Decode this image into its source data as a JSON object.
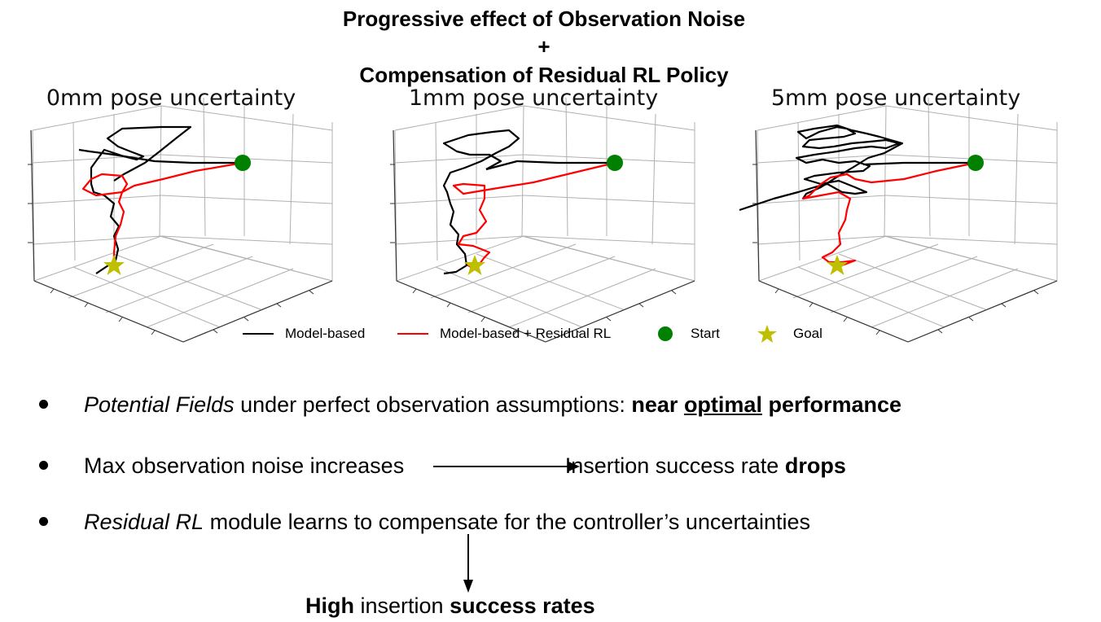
{
  "header": {
    "line1": "Progressive effect of Observation Noise",
    "line2": "+",
    "line3": "Compensation of Residual RL Policy"
  },
  "plots": [
    {
      "title": "0mm pose uncertainty",
      "noise_mm": 0
    },
    {
      "title": "1mm pose uncertainty",
      "noise_mm": 1
    },
    {
      "title": "5mm pose uncertainty",
      "noise_mm": 5
    }
  ],
  "legend": {
    "model_based": "Model-based",
    "residual": "Model-based + Residual RL",
    "start": "Start",
    "goal": "Goal"
  },
  "colors": {
    "model_based": "#000000",
    "residual": "#ff0000",
    "start": "#008000",
    "goal": "#bfbf00",
    "grid": "#b0b0b0"
  },
  "bullets": {
    "b1_part1": "Potential Fields",
    "b1_part2": " under perfect observation assumptions:  ",
    "b1_part3": "near ",
    "b1_part4": "optimal",
    "b1_part5": " performance",
    "b2_part1": "Max observation noise  increases ",
    "b2_part2": "Insertion success rate ",
    "b2_part3": "drops",
    "b3_part1": "Residual RL",
    "b3_part2": " module learns to compensate for the controller’s uncertainties"
  },
  "conclusion": {
    "part1": "High",
    "part2": " insertion ",
    "part3": "success rates"
  }
}
